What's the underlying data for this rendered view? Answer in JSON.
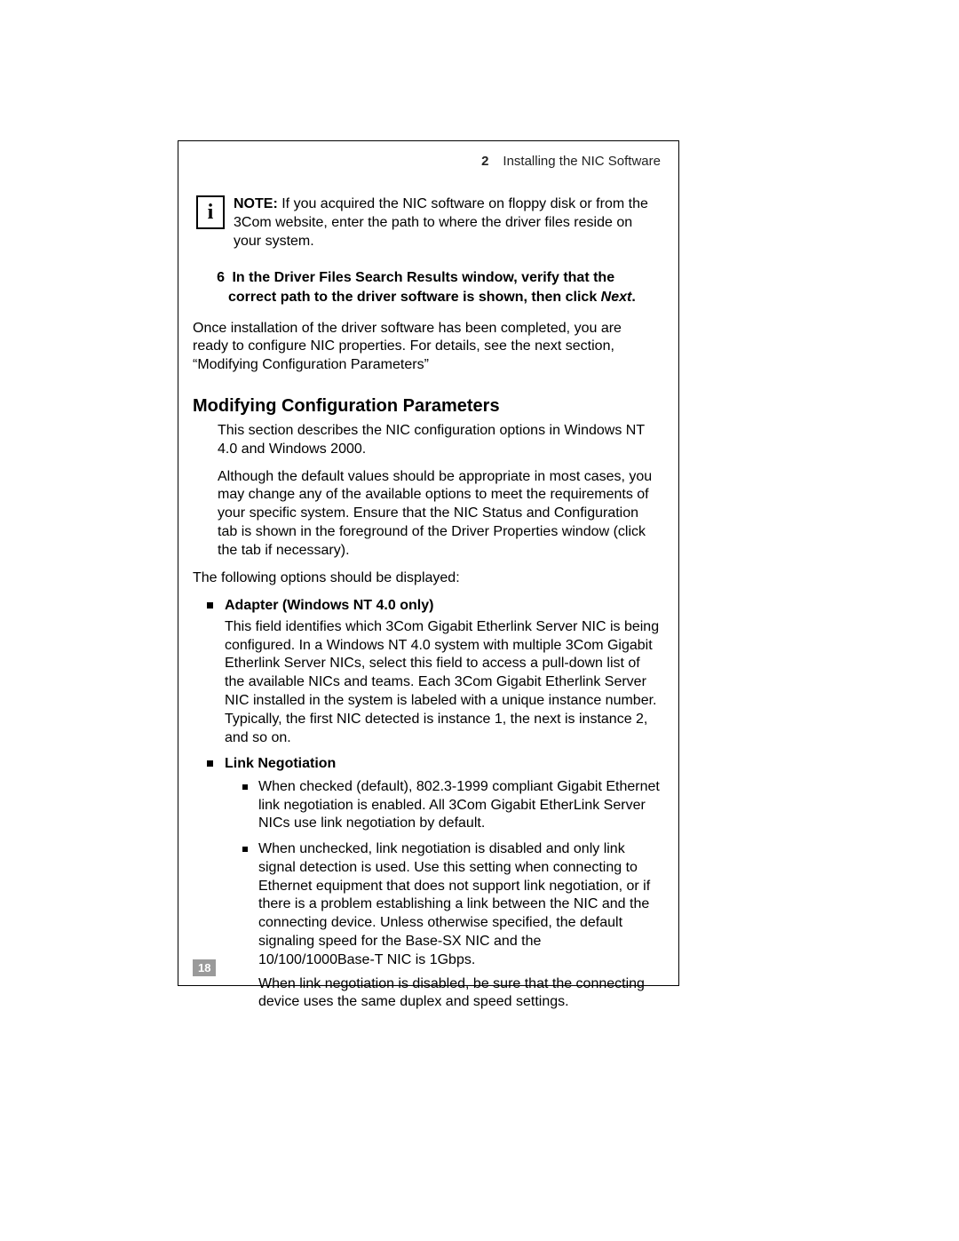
{
  "header": {
    "chapter_number": "2",
    "chapter_title": "Installing the NIC Software"
  },
  "note": {
    "icon_glyph": "i",
    "label": "NOTE:",
    "text": " If you acquired the NIC software on floppy disk or from the 3Com website, enter the path to where the driver files reside on your system."
  },
  "step": {
    "number": "6",
    "text_before": "In the Driver Files Search Results window, verify that the correct path to the driver software is shown, then click ",
    "italic": "Next",
    "text_after": "."
  },
  "post_step_para": "Once installation of the driver software has been completed, you are ready to configure NIC properties. For details, see the next section, “Modifying Configuration Parameters”",
  "section": {
    "title": "Modifying Configuration Parameters",
    "intro1": "This section describes the NIC configuration options in Windows NT 4.0 and Windows 2000.",
    "intro2": "Although the default values should be appropriate in most cases, you may change any of the available options to meet the requirements of your specific system. Ensure that the NIC Status and Configuration tab is shown in the foreground of the Driver Properties window (click the tab if necessary).",
    "lead": "The following options should be displayed:",
    "items": [
      {
        "title": "Adapter (Windows NT 4.0 only)",
        "body": "This field identifies which 3Com Gigabit Etherlink Server NIC is being configured. In a Windows NT 4.0 system with multiple 3Com Gigabit Etherlink Server NICs, select this field to access a pull-down list of the available NICs and teams. Each 3Com Gigabit Etherlink Server NIC installed in the system is labeled with a unique instance number. Typically, the first NIC detected is instance 1, the next is instance 2, and so on."
      },
      {
        "title": "Link Negotiation",
        "sub": [
          {
            "text": "When checked (default), 802.3-1999 compliant Gigabit Ethernet link negotiation is enabled. All 3Com Gigabit EtherLink Server NICs use link negotiation by default."
          },
          {
            "text": "When unchecked, link negotiation is disabled and only link signal detection is used. Use this setting when connecting to Ethernet equipment that does not support link negotiation, or if there is a problem establishing a link between the NIC and the connecting device. Unless otherwise specified, the default signaling speed for the Base-SX NIC and the 10/100/1000Base-T NIC is 1Gbps.",
            "followup": "When link negotiation is disabled, be sure that the connecting device uses the same duplex and speed settings."
          }
        ]
      }
    ]
  },
  "page_number": "18",
  "colors": {
    "text": "#000000",
    "page_num_bg": "#9a9a9a",
    "page_num_fg": "#ffffff",
    "border": "#000000"
  }
}
